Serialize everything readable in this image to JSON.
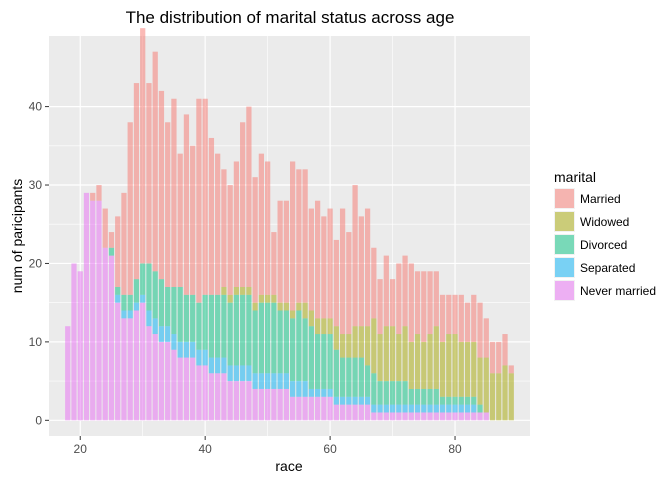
{
  "chart_data": {
    "type": "bar",
    "stacked": true,
    "title": "The distribution of marital status across age",
    "xlabel": "race",
    "ylabel": "num of paricipants",
    "xlim": [
      15,
      92
    ],
    "ylim": [
      -2,
      49
    ],
    "xticks": [
      20,
      40,
      60,
      80
    ],
    "yticks": [
      0,
      10,
      20,
      30,
      40
    ],
    "grid": true,
    "legend_placement": "right",
    "legend_title": "marital",
    "series": [
      {
        "name": "Married",
        "color": "#F8766D"
      },
      {
        "name": "Widowed",
        "color": "#A3A500"
      },
      {
        "name": "Divorced",
        "color": "#00BF7D"
      },
      {
        "name": "Separated",
        "color": "#00B0F6"
      },
      {
        "name": "Never married",
        "color": "#E76BF3"
      }
    ],
    "x": [
      18,
      19,
      20,
      21,
      22,
      23,
      24,
      25,
      26,
      27,
      28,
      29,
      30,
      31,
      32,
      33,
      34,
      35,
      36,
      37,
      38,
      39,
      40,
      41,
      42,
      43,
      44,
      45,
      46,
      47,
      48,
      49,
      50,
      51,
      52,
      53,
      54,
      55,
      56,
      57,
      58,
      59,
      60,
      61,
      62,
      63,
      64,
      65,
      66,
      67,
      68,
      69,
      70,
      71,
      72,
      73,
      74,
      75,
      76,
      77,
      78,
      79,
      80,
      81,
      82,
      83,
      84,
      85,
      86,
      87,
      88,
      89
    ],
    "counts": {
      "Married": [
        0,
        0,
        0,
        0,
        1,
        2,
        5,
        2,
        9,
        13,
        22,
        25,
        30,
        23,
        28,
        24,
        21,
        24,
        17,
        23,
        19,
        26,
        25,
        20,
        18,
        15,
        14,
        16,
        21,
        23,
        16,
        18,
        17,
        8,
        13,
        13,
        19,
        17,
        17,
        13,
        15,
        13,
        14,
        11,
        16,
        13,
        18,
        14,
        15,
        9,
        7,
        9,
        6,
        9,
        9,
        10,
        8,
        9,
        8,
        7,
        6,
        5,
        5,
        6,
        5,
        6,
        7,
        5,
        4,
        4,
        4,
        1
      ],
      "Widowed": [
        0,
        0,
        0,
        0,
        0,
        0,
        0,
        0,
        0,
        0,
        0,
        0,
        0,
        0,
        0,
        0,
        0,
        0,
        0,
        0,
        0,
        0,
        0,
        0,
        0,
        1,
        1,
        1,
        1,
        1,
        1,
        1,
        1,
        1,
        1,
        1,
        1,
        1,
        2,
        2,
        2,
        2,
        2,
        3,
        3,
        3,
        4,
        4,
        5,
        7,
        6,
        7,
        7,
        6,
        7,
        6,
        7,
        6,
        7,
        8,
        7,
        8,
        8,
        7,
        7,
        7,
        6,
        7,
        6,
        6,
        7,
        6
      ],
      "Divorced": [
        0,
        0,
        0,
        0,
        0,
        0,
        0,
        1,
        1,
        2,
        2,
        3,
        4,
        6,
        6,
        6,
        5,
        6,
        7,
        6,
        6,
        6,
        7,
        8,
        8,
        8,
        8,
        9,
        9,
        9,
        8,
        9,
        9,
        9,
        8,
        8,
        8,
        9,
        8,
        8,
        7,
        7,
        7,
        6,
        5,
        5,
        5,
        5,
        4,
        4,
        3,
        3,
        3,
        3,
        3,
        2,
        2,
        2,
        2,
        2,
        1,
        1,
        1,
        1,
        1,
        1,
        1,
        0,
        0,
        0,
        0,
        0
      ],
      "Separated": [
        0,
        0,
        0,
        0,
        0,
        0,
        0,
        0,
        1,
        1,
        1,
        1,
        1,
        2,
        2,
        2,
        2,
        2,
        2,
        2,
        2,
        2,
        2,
        2,
        2,
        2,
        2,
        2,
        2,
        2,
        2,
        2,
        2,
        2,
        2,
        2,
        2,
        2,
        2,
        1,
        1,
        1,
        1,
        1,
        1,
        1,
        1,
        1,
        1,
        1,
        1,
        1,
        1,
        1,
        1,
        1,
        1,
        1,
        1,
        1,
        1,
        1,
        1,
        1,
        1,
        1,
        0,
        0,
        0,
        0,
        0,
        0
      ],
      "Never married": [
        12,
        20,
        19,
        29,
        28,
        28,
        22,
        21,
        15,
        13,
        13,
        14,
        15,
        12,
        11,
        10,
        10,
        9,
        8,
        8,
        8,
        7,
        7,
        6,
        6,
        6,
        5,
        5,
        5,
        5,
        4,
        4,
        4,
        4,
        4,
        4,
        3,
        3,
        3,
        3,
        3,
        3,
        3,
        2,
        2,
        2,
        2,
        2,
        2,
        1,
        1,
        1,
        1,
        1,
        1,
        1,
        1,
        1,
        1,
        1,
        1,
        1,
        1,
        1,
        1,
        1,
        1,
        1,
        0,
        0,
        0,
        0
      ]
    }
  }
}
